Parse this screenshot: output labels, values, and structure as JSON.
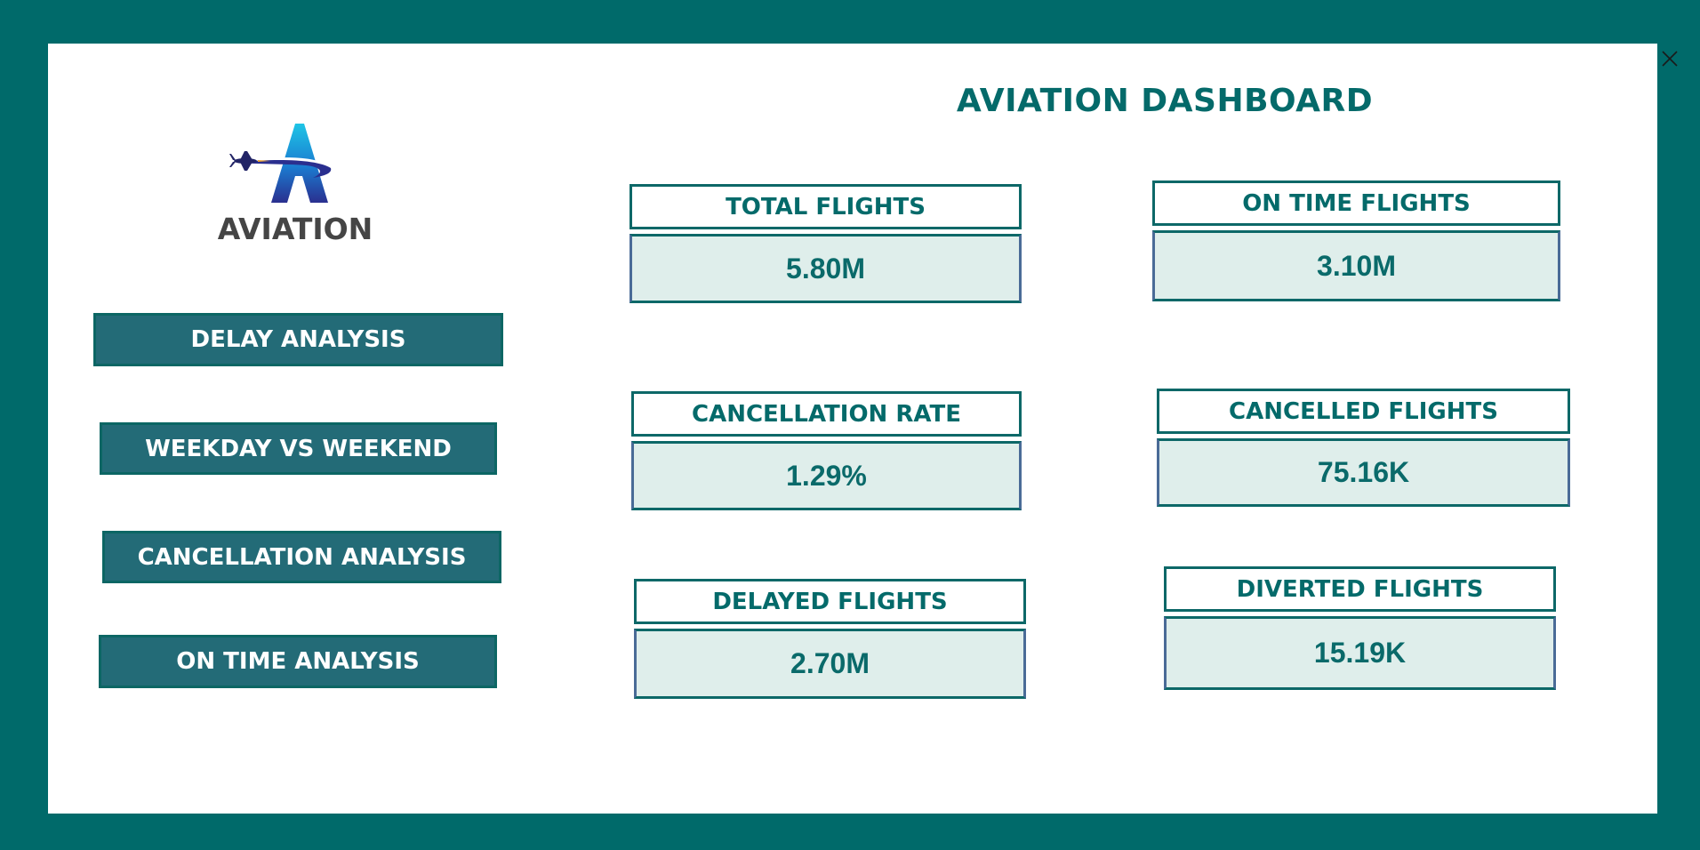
{
  "dashboard": {
    "title": "AVIATION DASHBOARD"
  },
  "logo": {
    "text": "AVIATION"
  },
  "nav": [
    {
      "label": "DELAY ANALYSIS"
    },
    {
      "label": "WEEKDAY VS WEEKEND"
    },
    {
      "label": "CANCELLATION ANALYSIS"
    },
    {
      "label": "ON TIME ANALYSIS"
    }
  ],
  "kpis": [
    {
      "label": "TOTAL FLIGHTS",
      "value": "5.80M"
    },
    {
      "label": "ON TIME FLIGHTS",
      "value": "3.10M"
    },
    {
      "label": "CANCELLATION RATE",
      "value": "1.29%"
    },
    {
      "label": "CANCELLED FLIGHTS",
      "value": "75.16K"
    },
    {
      "label": "DELAYED FLIGHTS",
      "value": "2.70M"
    },
    {
      "label": "DIVERTED FLIGHTS",
      "value": "15.19K"
    }
  ],
  "icons": {
    "close": "close-icon",
    "logo": "aviation-logo"
  },
  "colors": {
    "frame": "#006a6a",
    "accent": "#046a6a",
    "nav_background": "#236b77",
    "kpi_value_background": "#dfeeeb"
  }
}
